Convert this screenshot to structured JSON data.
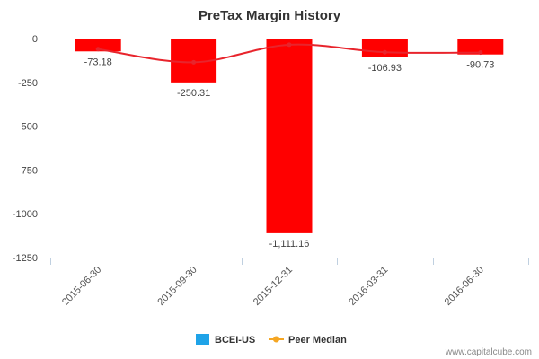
{
  "chart_data": {
    "type": "bar",
    "title": "PreTax Margin History",
    "xlabel": "",
    "ylabel": "",
    "categories": [
      "2015-06-30",
      "2015-09-30",
      "2015-12-31",
      "2016-03-31",
      "2016-06-30"
    ],
    "series": [
      {
        "name": "BCEI-US",
        "type": "bar",
        "values": [
          -73.18,
          -250.31,
          -1111.16,
          -106.93,
          -90.73
        ],
        "labels": [
          "-73.18",
          "-250.31",
          "-1,111.16",
          "-106.93",
          "-90.73"
        ],
        "color": "#ff0000",
        "legend_color": "#1fa3e8"
      },
      {
        "name": "Peer Median",
        "type": "line",
        "values": [
          -60,
          -135,
          -35,
          -78,
          -80
        ],
        "color": "#e8242c",
        "legend_color": "#f5a623"
      }
    ],
    "ylim": [
      -1250,
      0
    ],
    "yticks": [
      0,
      -250,
      -500,
      -750,
      -1000,
      -1250
    ],
    "ytick_labels": [
      "0",
      "-250",
      "-500",
      "-750",
      "-1000",
      "-1250"
    ],
    "grid": false,
    "legend": "bottom-center"
  },
  "watermark": "www.capitalcube.com"
}
